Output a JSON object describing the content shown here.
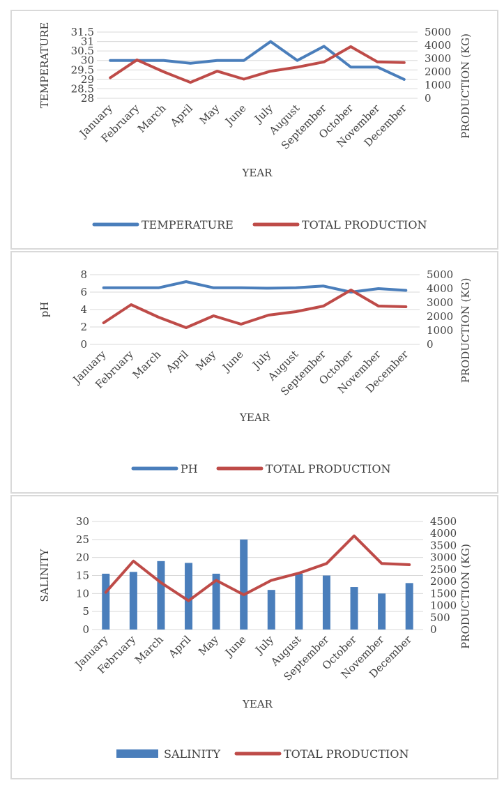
{
  "categories": [
    "January",
    "February",
    "March",
    "April",
    "May",
    "June",
    "July",
    "August",
    "September",
    "October",
    "November",
    "December"
  ],
  "colors": {
    "blue": "#4a7ebb",
    "red": "#be4b48",
    "grid": "#d9d9d9",
    "text": "#404040"
  },
  "chart_data": [
    {
      "type": "line",
      "xlabel": "YEAR",
      "ylabel": "TEMPERATURE",
      "y2label": "PRODUCTION (KG)",
      "ylim": [
        28,
        31.5
      ],
      "yticks": [
        "28",
        "28.5",
        "29",
        "29.5",
        "30",
        "30.5",
        "31",
        "31.5"
      ],
      "y2lim": [
        0,
        5000
      ],
      "y2ticks": [
        "0",
        "1000",
        "2000",
        "3000",
        "4000",
        "5000"
      ],
      "series": [
        {
          "name": "TEMPERATURE",
          "axis": "left",
          "kind": "line",
          "color": "#4a7ebb",
          "values": [
            30,
            30,
            30,
            29.85,
            30,
            30,
            31,
            30,
            30.75,
            29.65,
            29.65,
            29
          ]
        },
        {
          "name": "TOTAL PRODUCTION",
          "axis": "right",
          "kind": "line",
          "color": "#be4b48",
          "values": [
            1550,
            2900,
            2000,
            1200,
            2050,
            1450,
            2050,
            2350,
            2750,
            3900,
            2750,
            2700
          ]
        }
      ],
      "legend": "bottom"
    },
    {
      "type": "line",
      "xlabel": "YEAR",
      "ylabel": "pH",
      "y2label": "PRODUCTION (KG)",
      "ylim": [
        0,
        8
      ],
      "yticks": [
        "0",
        "2",
        "4",
        "6",
        "8"
      ],
      "y2lim": [
        0,
        5000
      ],
      "y2ticks": [
        "0",
        "1000",
        "2000",
        "3000",
        "4000",
        "5000"
      ],
      "series": [
        {
          "name": "PH",
          "axis": "left",
          "kind": "line",
          "color": "#4a7ebb",
          "values": [
            6.5,
            6.5,
            6.5,
            7.2,
            6.5,
            6.5,
            6.45,
            6.5,
            6.7,
            6.0,
            6.4,
            6.2
          ]
        },
        {
          "name": "TOTAL PRODUCTION",
          "axis": "right",
          "kind": "line",
          "color": "#be4b48",
          "values": [
            1550,
            2850,
            1950,
            1200,
            2050,
            1450,
            2100,
            2350,
            2750,
            3900,
            2750,
            2700
          ]
        }
      ],
      "legend": "bottom"
    },
    {
      "type": "bar",
      "xlabel": "YEAR",
      "ylabel": "SALINITY",
      "y2label": "PRODUCTION (KG)",
      "ylim": [
        0,
        30
      ],
      "yticks": [
        "0",
        "5",
        "10",
        "15",
        "20",
        "25",
        "30"
      ],
      "y2lim": [
        0,
        4500
      ],
      "y2ticks": [
        "0",
        "500",
        "1000",
        "1500",
        "2000",
        "2500",
        "3000",
        "3500",
        "4000",
        "4500"
      ],
      "series": [
        {
          "name": "SALINITY",
          "axis": "left",
          "kind": "bar",
          "color": "#4a7ebb",
          "values": [
            15.5,
            16,
            19,
            18.5,
            15.5,
            25,
            11,
            15.5,
            15,
            11.8,
            10,
            12.9
          ]
        },
        {
          "name": "TOTAL PRODUCTION",
          "axis": "right",
          "kind": "line",
          "color": "#be4b48",
          "values": [
            1550,
            2850,
            1950,
            1200,
            2050,
            1450,
            2050,
            2350,
            2750,
            3900,
            2750,
            2700
          ]
        }
      ],
      "legend": "bottom"
    }
  ]
}
